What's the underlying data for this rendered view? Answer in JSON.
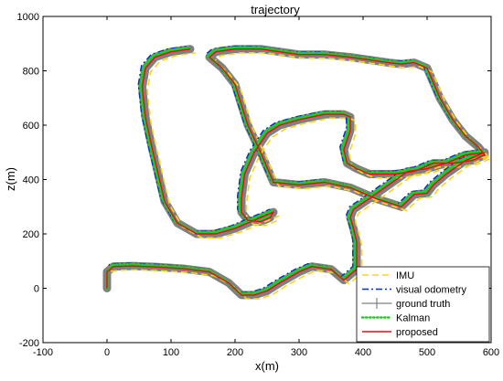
{
  "chart_data": {
    "type": "line",
    "title": "trajectory",
    "xlabel": "x(m)",
    "ylabel": "z(m)",
    "xlim": [
      -100,
      600
    ],
    "ylim": [
      -200,
      1000
    ],
    "grid": false,
    "legend_position": "bottom-right",
    "x_ticks": [
      -100,
      0,
      100,
      200,
      300,
      400,
      500,
      600
    ],
    "y_ticks": [
      -200,
      0,
      200,
      400,
      600,
      800,
      1000
    ],
    "x_tick_labels": [
      "-100",
      "0",
      "100",
      "200",
      "300",
      "400",
      "500",
      "600"
    ],
    "y_tick_labels": [
      "-200",
      "0",
      "200",
      "400",
      "600",
      "800",
      "1000"
    ],
    "series": [
      {
        "name": "IMU",
        "color": "#ffd21f",
        "style": "dashed",
        "x": [
          0,
          0,
          10,
          40,
          80,
          120,
          160,
          190,
          210,
          230,
          250,
          270,
          300,
          320,
          350,
          370,
          390,
          390,
          385,
          380,
          385,
          410,
          440,
          470,
          500,
          530,
          560,
          590,
          560,
          530,
          510,
          500,
          480,
          460,
          420,
          380,
          340,
          300,
          260,
          240,
          220,
          200,
          180,
          170,
          160,
          170,
          200,
          240,
          270,
          300,
          340,
          380,
          410,
          440,
          460,
          480,
          500,
          520,
          540,
          560,
          580,
          590,
          570,
          540,
          510,
          480,
          450,
          410,
          390,
          375,
          370,
          380,
          380,
          370,
          340,
          300,
          270,
          250,
          230,
          215,
          210,
          210,
          220,
          240,
          255,
          260,
          235,
          200,
          170,
          140,
          110,
          90,
          80,
          70,
          60,
          55,
          60,
          75,
          100,
          130
        ],
        "y": [
          0,
          60,
          80,
          82,
          78,
          72,
          60,
          20,
          -25,
          -25,
          -10,
          20,
          60,
          80,
          70,
          30,
          70,
          170,
          220,
          260,
          290,
          330,
          380,
          430,
          440,
          460,
          490,
          500,
          470,
          420,
          380,
          350,
          345,
          300,
          330,
          370,
          390,
          380,
          390,
          500,
          600,
          750,
          810,
          830,
          850,
          870,
          880,
          880,
          870,
          860,
          860,
          850,
          840,
          830,
          825,
          830,
          810,
          700,
          620,
          560,
          520,
          490,
          470,
          460,
          460,
          430,
          420,
          420,
          440,
          460,
          510,
          580,
          630,
          640,
          640,
          620,
          600,
          570,
          500,
          420,
          330,
          280,
          250,
          245,
          260,
          280,
          255,
          220,
          200,
          200,
          240,
          320,
          420,
          520,
          630,
          740,
          810,
          850,
          870,
          880
        ]
      },
      {
        "name": "visual odometry",
        "color": "#0033cc",
        "style": "dashdot",
        "x": [
          0,
          0,
          10,
          40,
          80,
          120,
          160,
          190,
          210,
          230,
          250,
          270,
          300,
          320,
          350,
          370,
          390,
          390,
          385,
          380,
          385,
          410,
          440,
          470,
          500,
          530,
          560,
          590,
          560,
          530,
          510,
          500,
          480,
          460,
          420,
          380,
          340,
          300,
          260,
          240,
          220,
          200,
          180,
          170,
          160,
          170,
          200,
          240,
          270,
          300,
          340,
          380,
          410,
          440,
          460,
          480,
          500,
          520,
          540,
          560,
          580,
          590,
          570,
          540,
          510,
          480,
          450,
          410,
          390,
          375,
          370,
          380,
          380,
          370,
          340,
          300,
          270,
          250,
          230,
          215,
          210,
          210,
          220,
          240,
          255,
          260,
          235,
          200,
          170,
          140,
          110,
          90,
          80,
          70,
          60,
          55,
          60,
          75,
          100,
          130
        ],
        "y": [
          0,
          60,
          80,
          82,
          78,
          72,
          60,
          20,
          -25,
          -25,
          -10,
          20,
          60,
          80,
          70,
          30,
          70,
          170,
          220,
          260,
          290,
          330,
          380,
          430,
          440,
          460,
          490,
          500,
          470,
          420,
          380,
          350,
          345,
          300,
          330,
          370,
          390,
          380,
          390,
          500,
          600,
          750,
          810,
          830,
          850,
          870,
          880,
          880,
          870,
          860,
          860,
          850,
          840,
          830,
          825,
          830,
          810,
          700,
          620,
          560,
          520,
          490,
          470,
          460,
          460,
          430,
          420,
          420,
          440,
          460,
          510,
          580,
          630,
          640,
          640,
          620,
          600,
          570,
          500,
          420,
          330,
          280,
          250,
          245,
          260,
          280,
          255,
          220,
          200,
          200,
          240,
          320,
          420,
          520,
          630,
          740,
          810,
          850,
          870,
          880
        ]
      },
      {
        "name": "ground truth",
        "color": "#808080",
        "style": "solid-marker",
        "x": [
          0,
          0,
          10,
          40,
          80,
          120,
          160,
          190,
          210,
          230,
          250,
          270,
          300,
          320,
          350,
          370,
          390,
          390,
          385,
          380,
          385,
          410,
          440,
          470,
          500,
          530,
          560,
          590,
          560,
          530,
          510,
          500,
          480,
          460,
          420,
          380,
          340,
          300,
          260,
          240,
          220,
          200,
          180,
          170,
          160,
          170,
          200,
          240,
          270,
          300,
          340,
          380,
          410,
          440,
          460,
          480,
          500,
          520,
          540,
          560,
          580,
          590,
          570,
          540,
          510,
          480,
          450,
          410,
          390,
          375,
          370,
          380,
          380,
          370,
          340,
          300,
          270,
          250,
          230,
          215,
          210,
          210,
          220,
          240,
          255,
          260,
          235,
          200,
          170,
          140,
          110,
          90,
          80,
          70,
          60,
          55,
          60,
          75,
          100,
          130
        ],
        "y": [
          0,
          60,
          80,
          82,
          78,
          72,
          60,
          20,
          -25,
          -25,
          -10,
          20,
          60,
          80,
          70,
          30,
          70,
          170,
          220,
          260,
          290,
          330,
          380,
          430,
          440,
          460,
          490,
          500,
          470,
          420,
          380,
          350,
          345,
          300,
          330,
          370,
          390,
          380,
          390,
          500,
          600,
          750,
          810,
          830,
          850,
          870,
          880,
          880,
          870,
          860,
          860,
          850,
          840,
          830,
          825,
          830,
          810,
          700,
          620,
          560,
          520,
          490,
          470,
          460,
          460,
          430,
          420,
          420,
          440,
          460,
          510,
          580,
          630,
          640,
          640,
          620,
          600,
          570,
          500,
          420,
          330,
          280,
          250,
          245,
          260,
          280,
          255,
          220,
          200,
          200,
          240,
          320,
          420,
          520,
          630,
          740,
          810,
          850,
          870,
          880
        ]
      },
      {
        "name": "Kalman",
        "color": "#22cc22",
        "style": "dotted",
        "x": [
          0,
          0,
          10,
          40,
          80,
          120,
          160,
          190,
          210,
          230,
          250,
          270,
          300,
          320,
          350,
          370,
          390,
          390,
          385,
          380,
          385,
          410,
          440,
          470,
          500,
          530,
          560,
          590,
          560,
          530,
          510,
          500,
          480,
          460,
          420,
          380,
          340,
          300,
          260,
          240,
          220,
          200,
          180,
          170,
          160,
          170,
          200,
          240,
          270,
          300,
          340,
          380,
          410,
          440,
          460,
          480,
          500,
          520,
          540,
          560,
          580,
          590,
          570,
          540,
          510,
          480,
          450,
          410,
          390,
          375,
          370,
          380,
          380,
          370,
          340,
          300,
          270,
          250,
          230,
          215,
          210,
          210,
          220,
          240,
          255,
          260,
          235,
          200,
          170,
          140,
          110,
          90,
          80,
          70,
          60,
          55,
          60,
          75,
          100,
          130
        ],
        "y": [
          0,
          60,
          80,
          82,
          78,
          72,
          60,
          20,
          -25,
          -25,
          -10,
          20,
          60,
          80,
          70,
          30,
          70,
          170,
          220,
          260,
          290,
          330,
          380,
          430,
          440,
          460,
          490,
          500,
          470,
          420,
          380,
          350,
          345,
          300,
          330,
          370,
          390,
          380,
          390,
          500,
          600,
          750,
          810,
          830,
          850,
          870,
          880,
          880,
          870,
          860,
          860,
          850,
          840,
          830,
          825,
          830,
          810,
          700,
          620,
          560,
          520,
          490,
          470,
          460,
          460,
          430,
          420,
          420,
          440,
          460,
          510,
          580,
          630,
          640,
          640,
          620,
          600,
          570,
          500,
          420,
          330,
          280,
          250,
          245,
          260,
          280,
          255,
          220,
          200,
          200,
          240,
          320,
          420,
          520,
          630,
          740,
          810,
          850,
          870,
          880
        ]
      },
      {
        "name": "proposed",
        "color": "#dd1111",
        "style": "solid",
        "x": [
          0,
          0,
          10,
          40,
          80,
          120,
          160,
          190,
          210,
          230,
          250,
          270,
          300,
          320,
          350,
          370,
          390,
          390,
          385,
          380,
          385,
          410,
          440,
          470,
          500,
          530,
          560,
          590,
          560,
          530,
          510,
          500,
          480,
          460,
          420,
          380,
          340,
          300,
          260,
          240,
          220,
          200,
          180,
          170,
          160,
          170,
          200,
          240,
          270,
          300,
          340,
          380,
          410,
          440,
          460,
          480,
          500,
          520,
          540,
          560,
          580,
          590,
          570,
          540,
          510,
          480,
          450,
          410,
          390,
          375,
          370,
          380,
          380,
          370,
          340,
          300,
          270,
          250,
          230,
          215,
          210,
          210,
          220,
          240,
          255,
          260,
          235,
          200,
          170,
          140,
          110,
          90,
          80,
          70,
          60,
          55,
          60,
          75,
          100,
          130
        ],
        "y": [
          0,
          60,
          80,
          82,
          78,
          72,
          60,
          20,
          -25,
          -25,
          -10,
          20,
          60,
          80,
          70,
          30,
          70,
          170,
          220,
          260,
          290,
          330,
          380,
          430,
          440,
          460,
          490,
          500,
          470,
          420,
          380,
          350,
          345,
          300,
          330,
          370,
          390,
          380,
          390,
          500,
          600,
          750,
          810,
          830,
          850,
          870,
          880,
          880,
          870,
          860,
          860,
          850,
          840,
          830,
          825,
          830,
          810,
          700,
          620,
          560,
          520,
          490,
          470,
          460,
          460,
          430,
          420,
          420,
          440,
          460,
          510,
          580,
          630,
          640,
          640,
          620,
          600,
          570,
          500,
          420,
          330,
          280,
          250,
          245,
          260,
          280,
          255,
          220,
          200,
          200,
          240,
          320,
          420,
          520,
          630,
          740,
          810,
          850,
          870,
          880
        ]
      }
    ]
  }
}
